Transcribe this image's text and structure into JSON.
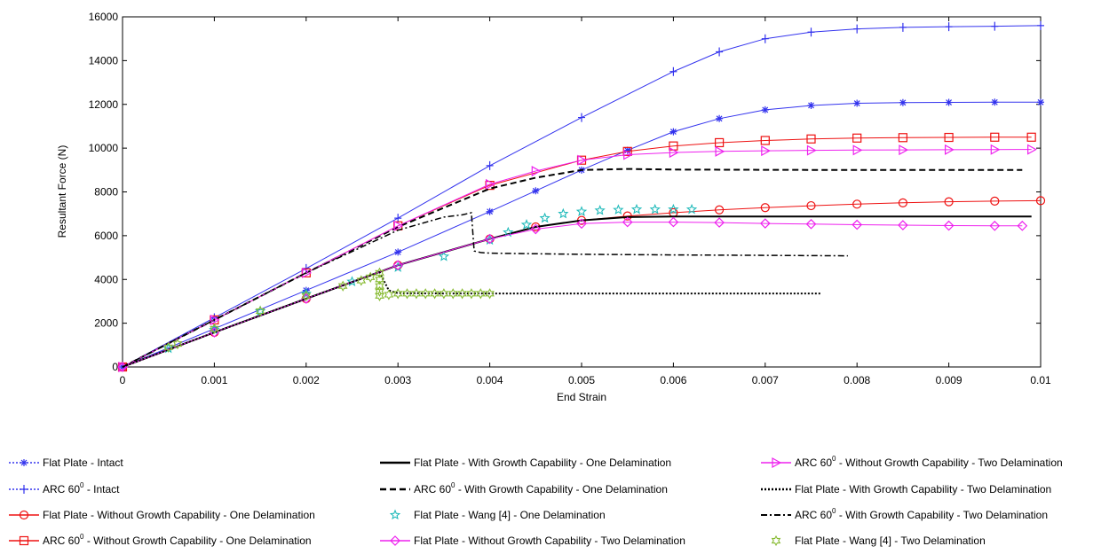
{
  "chart_data": {
    "type": "line",
    "title": "",
    "xlabel": "End Strain",
    "ylabel": "Resultant Force (N)",
    "xlim": [
      0,
      0.01
    ],
    "ylim": [
      0,
      16000
    ],
    "xticks": [
      0,
      0.001,
      0.002,
      0.003,
      0.004,
      0.005,
      0.006,
      0.007,
      0.008,
      0.009,
      0.01
    ],
    "xtick_labels": [
      "0",
      "0.001",
      "0.002",
      "0.003",
      "0.004",
      "0.005",
      "0.006",
      "0.007",
      "0.008",
      "0.009",
      "0.01"
    ],
    "yticks": [
      0,
      2000,
      4000,
      6000,
      8000,
      10000,
      12000,
      14000,
      16000
    ],
    "ytick_labels": [
      "0",
      "2000",
      "4000",
      "6000",
      "8000",
      "10000",
      "12000",
      "14000",
      "16000"
    ],
    "grid": false,
    "legend_position": "bottom",
    "series": [
      {
        "name": "Flat Plate - Intact",
        "label_main": "Flat Plate - Intact",
        "label_sup": "",
        "label_rest": "",
        "color": "#3333ee",
        "dash": "2,2",
        "marker": "asterisk",
        "line_on_chart": "solid",
        "chart_marker": "asterisk",
        "lw": 1,
        "x": [
          0,
          0.001,
          0.002,
          0.003,
          0.004,
          0.0045,
          0.005,
          0.0055,
          0.006,
          0.0065,
          0.007,
          0.0075,
          0.008,
          0.0085,
          0.009,
          0.0095,
          0.01
        ],
        "y": [
          0,
          1750,
          3500,
          5250,
          7100,
          8050,
          9000,
          9900,
          10750,
          11350,
          11750,
          11950,
          12050,
          12080,
          12090,
          12100,
          12100
        ]
      },
      {
        "name": "ARC 60⁰ - Intact",
        "label_main": "ARC 60",
        "label_sup": "0",
        "label_rest": " - Intact",
        "color": "#3333ee",
        "dash": "2,2",
        "marker": "plus",
        "line_on_chart": "solid",
        "chart_marker": "plus",
        "lw": 1,
        "x": [
          0,
          0.001,
          0.002,
          0.003,
          0.004,
          0.005,
          0.006,
          0.0065,
          0.007,
          0.0075,
          0.008,
          0.0085,
          0.009,
          0.0095,
          0.01
        ],
        "y": [
          0,
          2250,
          4500,
          6800,
          9200,
          11400,
          13500,
          14400,
          15000,
          15300,
          15450,
          15520,
          15550,
          15570,
          15600
        ]
      },
      {
        "name": "Flat Plate - Without Growth Capability - One Delamination",
        "label_main": "Flat Plate - Without Growth Capability - One Delamination",
        "label_sup": "",
        "label_rest": "",
        "color": "#ee1111",
        "dash": "",
        "marker": "circle",
        "line_on_chart": "solid",
        "chart_marker": "circle",
        "lw": 1,
        "x": [
          0,
          0.001,
          0.002,
          0.003,
          0.004,
          0.0045,
          0.005,
          0.0055,
          0.006,
          0.0065,
          0.007,
          0.0075,
          0.008,
          0.0085,
          0.009,
          0.0095,
          0.01
        ],
        "y": [
          0,
          1580,
          3120,
          4650,
          5850,
          6400,
          6700,
          6900,
          7050,
          7180,
          7280,
          7370,
          7440,
          7500,
          7550,
          7580,
          7600
        ]
      },
      {
        "name": "ARC 60⁰ - Without Growth Capability - One Delamination",
        "label_main": "ARC 60",
        "label_sup": "0",
        "label_rest": " - Without Growth Capability - One Delamination",
        "color": "#ee1111",
        "dash": "",
        "marker": "square",
        "line_on_chart": "solid",
        "chart_marker": "square",
        "lw": 1,
        "x": [
          0,
          0.001,
          0.002,
          0.003,
          0.004,
          0.005,
          0.0055,
          0.006,
          0.0065,
          0.007,
          0.0075,
          0.008,
          0.0085,
          0.009,
          0.0095,
          0.0099
        ],
        "y": [
          0,
          2150,
          4300,
          6450,
          8300,
          9450,
          9850,
          10100,
          10250,
          10350,
          10420,
          10460,
          10480,
          10490,
          10500,
          10500
        ]
      },
      {
        "name": "Flat Plate - With Growth Capability - One Delamination",
        "label_main": "Flat Plate - With Growth Capability - One Delamination",
        "label_sup": "",
        "label_rest": "",
        "color": "#000000",
        "dash": "",
        "marker": "none",
        "line_on_chart": "solid",
        "chart_marker": "none",
        "lw": 2,
        "x": [
          0,
          0.001,
          0.002,
          0.003,
          0.004,
          0.0045,
          0.005,
          0.0055,
          0.006,
          0.007,
          0.008,
          0.009,
          0.0099
        ],
        "y": [
          0,
          1580,
          3120,
          4650,
          5850,
          6400,
          6700,
          6850,
          6880,
          6880,
          6880,
          6880,
          6880
        ]
      },
      {
        "name": "ARC 60⁰ - With Growth Capability - One Delamination",
        "label_main": "ARC 60",
        "label_sup": "0",
        "label_rest": " - With Growth Capability - One Delamination",
        "color": "#000000",
        "dash": "7,4",
        "marker": "none",
        "line_on_chart": "dashed",
        "chart_marker": "none",
        "lw": 2,
        "x": [
          0,
          0.001,
          0.002,
          0.003,
          0.004,
          0.0045,
          0.005,
          0.0055,
          0.006,
          0.007,
          0.008,
          0.009,
          0.0098
        ],
        "y": [
          0,
          2150,
          4300,
          6400,
          8150,
          8650,
          9000,
          9050,
          9020,
          9010,
          9000,
          9000,
          9000
        ]
      },
      {
        "name": "Flat Plate - Wang [4] - One Delamination",
        "label_main": "Flat Plate - Wang [4] - One Delamination",
        "label_sup": "",
        "label_rest": "",
        "color": "#22bbbb",
        "dash": "",
        "marker": "star",
        "line_on_chart": "none",
        "chart_marker": "star",
        "lw": 1,
        "x": [
          0.0005,
          0.001,
          0.0015,
          0.002,
          0.0025,
          0.003,
          0.0035,
          0.004,
          0.0042,
          0.0044,
          0.0046,
          0.0048,
          0.005,
          0.0052,
          0.0054,
          0.0056,
          0.0058,
          0.006,
          0.0062
        ],
        "y": [
          850,
          1700,
          2550,
          3350,
          3900,
          4550,
          5050,
          5800,
          6150,
          6500,
          6800,
          7000,
          7100,
          7150,
          7180,
          7200,
          7200,
          7200,
          7200
        ]
      },
      {
        "name": "Flat Plate - Without Growth Capability - Two Delamination",
        "label_main": "Flat Plate - Without Growth Capability - Two Delamination",
        "label_sup": "",
        "label_rest": "",
        "color": "#ee22ee",
        "dash": "",
        "marker": "diamond",
        "line_on_chart": "solid",
        "chart_marker": "diamond",
        "lw": 1,
        "x": [
          0,
          0.001,
          0.002,
          0.003,
          0.004,
          0.0045,
          0.005,
          0.0055,
          0.006,
          0.0065,
          0.007,
          0.0075,
          0.008,
          0.0085,
          0.009,
          0.0095,
          0.0098
        ],
        "y": [
          0,
          1580,
          3120,
          4650,
          5850,
          6300,
          6550,
          6620,
          6620,
          6600,
          6560,
          6530,
          6500,
          6480,
          6460,
          6450,
          6450
        ]
      },
      {
        "name": "ARC 60⁰ - Without Growth Capability - Two Delamination",
        "label_main": "ARC 60",
        "label_sup": "0",
        "label_rest": " - Without Growth Capability - Two Delamination",
        "color": "#ee22ee",
        "dash": "",
        "marker": "triangle-right",
        "line_on_chart": "solid",
        "chart_marker": "triangle-right",
        "lw": 1,
        "x": [
          0,
          0.001,
          0.002,
          0.003,
          0.004,
          0.0045,
          0.005,
          0.0055,
          0.006,
          0.0065,
          0.007,
          0.0075,
          0.008,
          0.0085,
          0.009,
          0.0095,
          0.0099
        ],
        "y": [
          0,
          2150,
          4300,
          6450,
          8350,
          8950,
          9450,
          9700,
          9800,
          9850,
          9880,
          9900,
          9910,
          9920,
          9930,
          9935,
          9940
        ]
      },
      {
        "name": "Flat Plate - With Growth Capability - Two Delamination",
        "label_main": "Flat Plate - With Growth Capability - Two Delamination",
        "label_sup": "",
        "label_rest": "",
        "color": "#000000",
        "dash": "2,2",
        "marker": "none",
        "line_on_chart": "dotted",
        "chart_marker": "none",
        "lw": 2,
        "x": [
          0,
          0.001,
          0.002,
          0.0028,
          0.0029,
          0.003,
          0.0035,
          0.004,
          0.005,
          0.006,
          0.007,
          0.0076
        ],
        "y": [
          0,
          1580,
          3120,
          4330,
          3500,
          3370,
          3360,
          3360,
          3360,
          3360,
          3360,
          3360
        ]
      },
      {
        "name": "ARC 60⁰ - With Growth Capability - Two Delamination",
        "label_main": "ARC 60",
        "label_sup": "0",
        "label_rest": " - With Growth Capability - Two Delamination",
        "color": "#000000",
        "dash": "7,3,2,3",
        "marker": "none",
        "line_on_chart": "dashdot",
        "chart_marker": "none",
        "lw": 1.5,
        "x": [
          0,
          0.001,
          0.002,
          0.003,
          0.0035,
          0.0037,
          0.0038,
          0.00383,
          0.0039,
          0.004,
          0.005,
          0.006,
          0.007,
          0.0079
        ],
        "y": [
          0,
          2150,
          4300,
          6250,
          6850,
          6950,
          7050,
          5300,
          5230,
          5200,
          5150,
          5120,
          5100,
          5080
        ]
      },
      {
        "name": "Flat Plate - Wang [4] - Two Delamination",
        "label_main": "Flat Plate - Wang [4] - Two Delamination",
        "label_sup": "",
        "label_rest": "",
        "color": "#88bb33",
        "dash": "",
        "marker": "hexstar",
        "line_on_chart": "none",
        "chart_marker": "hexstar",
        "lw": 1,
        "x": [
          0.0005,
          0.0006,
          0.001,
          0.0015,
          0.002,
          0.0024,
          0.0026,
          0.0027,
          0.0028,
          0.0028,
          0.0028,
          0.0028,
          0.0028,
          0.0029,
          0.003,
          0.0031,
          0.0032,
          0.0033,
          0.0034,
          0.0035,
          0.0036,
          0.0037,
          0.0038,
          0.0039,
          0.004
        ],
        "y": [
          900,
          1050,
          1750,
          2550,
          3250,
          3700,
          3950,
          4100,
          4300,
          4000,
          3700,
          3450,
          3250,
          3300,
          3350,
          3350,
          3350,
          3350,
          3350,
          3350,
          3350,
          3350,
          3350,
          3350,
          3350
        ]
      }
    ]
  }
}
